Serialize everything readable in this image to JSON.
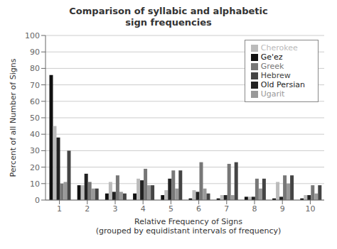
{
  "chart_data": {
    "type": "bar",
    "title": "Comparison of syllabic and alphabetic\nsign frequencies",
    "x_label": "Relative Frequency of Signs\n(grouped by equidistant intervals of frequency)",
    "y_label": "Percent of all Number of Signs",
    "categories": [
      "1",
      "2",
      "3",
      "4",
      "5",
      "6",
      "7",
      "8",
      "9",
      "10"
    ],
    "series": [
      {
        "name": "Ge'ez",
        "color": "#111111",
        "values": [
          76,
          9,
          4,
          4,
          3,
          1,
          1,
          2,
          1,
          1
        ]
      },
      {
        "name": "Cherokee",
        "color": "#bbbbbb",
        "values": [
          45,
          9,
          11,
          13,
          6,
          6,
          3,
          2,
          11,
          3
        ]
      },
      {
        "name": "Old Persian",
        "color": "#222222",
        "values": [
          38,
          16,
          5,
          12,
          13,
          5,
          3,
          2,
          2,
          3
        ]
      },
      {
        "name": "Greek",
        "color": "#777777",
        "values": [
          10,
          11,
          15,
          19,
          18,
          23,
          22,
          13,
          15,
          9
        ]
      },
      {
        "name": "Ugarit",
        "color": "#999999",
        "values": [
          11,
          7,
          5,
          9,
          7,
          7,
          3,
          7,
          10,
          4
        ]
      },
      {
        "name": "Hebrew",
        "color": "#444444",
        "values": [
          30,
          7,
          4,
          9,
          18,
          4,
          23,
          13,
          15,
          9
        ]
      }
    ],
    "ylim": [
      0,
      100
    ],
    "yticks": [
      0,
      10,
      20,
      30,
      40,
      50,
      60,
      70,
      80,
      90,
      100
    ],
    "grid": true,
    "legend": "upper right"
  }
}
